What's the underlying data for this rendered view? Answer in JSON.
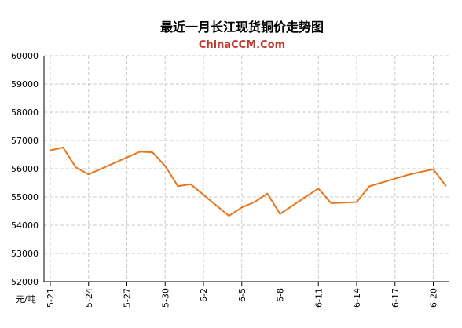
{
  "chart_data": {
    "type": "line",
    "title": "最近一月长江现货铜价走势图",
    "subtitle": "ChinaCCM.Com",
    "ylabel": "元/吨",
    "xlabel": "",
    "ylim": [
      52000,
      60000
    ],
    "yticks": [
      52000,
      53000,
      54000,
      55000,
      56000,
      57000,
      58000,
      59000,
      60000
    ],
    "xtick_labels": [
      "5-21",
      "5-24",
      "5-27",
      "5-30",
      "6-2",
      "6-5",
      "6-8",
      "6-11",
      "6-14",
      "6-17",
      "6-20"
    ],
    "grid": true,
    "colors": {
      "line": "#e8751a",
      "title": "#000000",
      "subtitle": "#c0392b",
      "grid": "#c8c8c8",
      "axis": "#000000"
    },
    "series": [
      {
        "values": [
          56650,
          56750,
          56050,
          55800,
          56600,
          56580,
          56100,
          55380,
          55450,
          54330,
          54630,
          54820,
          55120,
          54400,
          55300,
          54780,
          54800,
          54820,
          55380,
          55780,
          55980,
          55380
        ]
      }
    ]
  }
}
